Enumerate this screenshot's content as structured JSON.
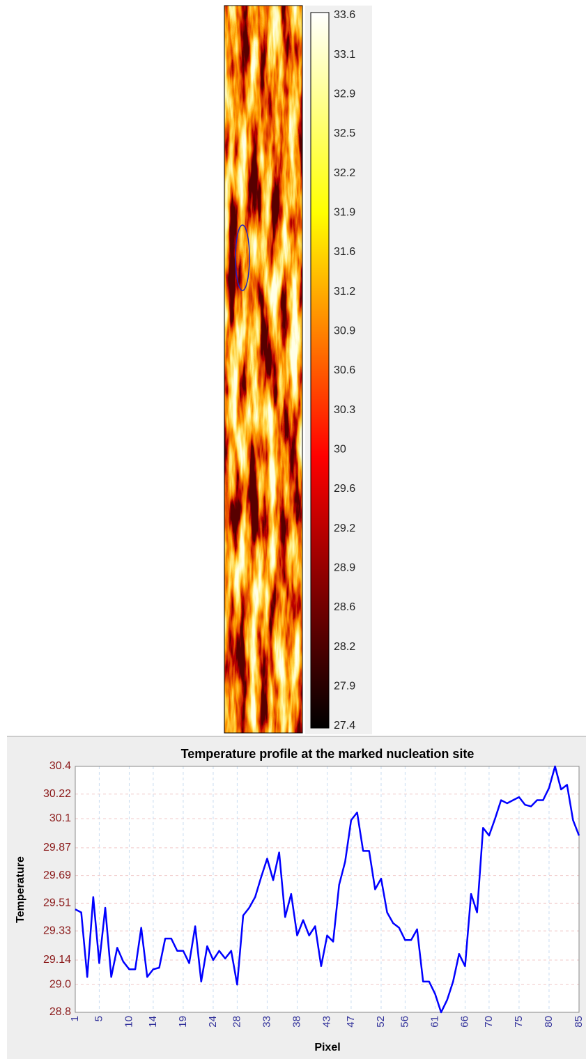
{
  "chart_data": [
    {
      "type": "heatmap",
      "colorbar": {
        "ticks": [
          33.6,
          33.1,
          32.9,
          32.5,
          32.2,
          31.9,
          31.6,
          31.2,
          30.9,
          30.6,
          30.3,
          30.0,
          29.6,
          29.2,
          28.9,
          28.6,
          28.2,
          27.9,
          27.4
        ]
      }
    },
    {
      "type": "line",
      "title": "Temperature profile at the marked nucleation site",
      "xlabel": "Pixel",
      "ylabel": "Temperature",
      "x": [
        1,
        2,
        3,
        4,
        5,
        6,
        7,
        8,
        9,
        10,
        11,
        12,
        13,
        14,
        15,
        16,
        17,
        18,
        19,
        20,
        21,
        22,
        23,
        24,
        25,
        26,
        27,
        28,
        29,
        30,
        31,
        32,
        33,
        34,
        35,
        36,
        37,
        38,
        39,
        40,
        41,
        42,
        43,
        44,
        45,
        46,
        47,
        48,
        49,
        50,
        51,
        52,
        53,
        54,
        55,
        56,
        57,
        58,
        59,
        60,
        61,
        62,
        63,
        64,
        65,
        66,
        67,
        68,
        69,
        70,
        71,
        72,
        73,
        74,
        75,
        76,
        77,
        78,
        79,
        80,
        81,
        82,
        83,
        84,
        85
      ],
      "series": [
        {
          "color": "#0000ff",
          "values": [
            29.47,
            29.45,
            29.03,
            29.55,
            29.12,
            29.48,
            29.03,
            29.22,
            29.13,
            29.08,
            29.08,
            29.35,
            29.03,
            29.08,
            29.09,
            29.28,
            29.28,
            29.2,
            29.2,
            29.12,
            29.36,
            29.0,
            29.23,
            29.14,
            29.2,
            29.15,
            29.2,
            28.98,
            29.43,
            29.48,
            29.55,
            29.68,
            29.8,
            29.66,
            29.84,
            29.42,
            29.57,
            29.3,
            29.4,
            29.3,
            29.36,
            29.1,
            29.3,
            29.26,
            29.63,
            29.78,
            30.05,
            30.1,
            29.85,
            29.85,
            29.6,
            29.67,
            29.45,
            29.38,
            29.35,
            29.27,
            29.27,
            29.34,
            29.0,
            29.0,
            28.92,
            28.8,
            28.88,
            29.0,
            29.18,
            29.1,
            29.57,
            29.45,
            30.0,
            29.95,
            30.06,
            30.18,
            30.16,
            30.18,
            30.2,
            30.15,
            30.14,
            30.18,
            30.18,
            30.26,
            30.4,
            30.25,
            30.28,
            30.05,
            29.95
          ]
        }
      ],
      "xlim": [
        1,
        85
      ],
      "ylim": [
        28.8,
        30.4
      ],
      "xticks": [
        1,
        5,
        10,
        14,
        19,
        24,
        28,
        33,
        38,
        43,
        47,
        52,
        56,
        61,
        66,
        70,
        75,
        80,
        85
      ],
      "yticks": [
        28.8,
        {
          "value": 28.98,
          "label": "29.0"
        },
        29.14,
        29.33,
        29.51,
        29.69,
        29.87,
        {
          "value": 30.06,
          "label": "30.1"
        },
        30.22,
        30.4
      ],
      "grid": true
    }
  ]
}
